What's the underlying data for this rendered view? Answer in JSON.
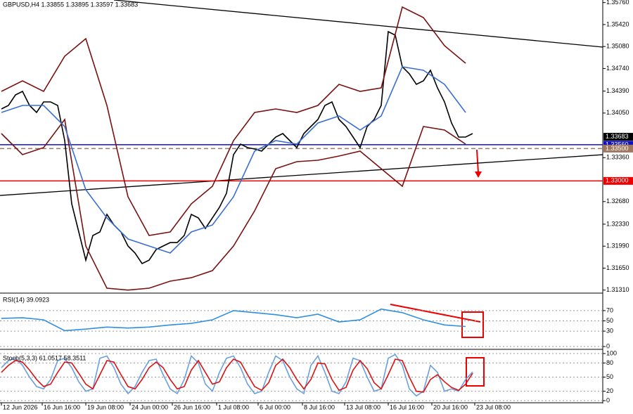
{
  "chart_data": [
    {
      "type": "line",
      "title": "GBPUSD,H4  1.33855 1.33895 1.33597 1.33683",
      "x": [
        0,
        1,
        2,
        3,
        4,
        5,
        6,
        7,
        8,
        9,
        10,
        11,
        12,
        13,
        14,
        15,
        16,
        17,
        18,
        19,
        20,
        21,
        22,
        23,
        24,
        25,
        26,
        27,
        28,
        29,
        30,
        31,
        32,
        33,
        34,
        35,
        36,
        37,
        38,
        39,
        40,
        41,
        42,
        43,
        44,
        45,
        46,
        47,
        48,
        49,
        50,
        51,
        52,
        53,
        54,
        55,
        56,
        57,
        58,
        59,
        60,
        61,
        62,
        63,
        64,
        65,
        66,
        67
      ],
      "xlim": [
        -0.2,
        85.5
      ],
      "ylim": [
        1.31285,
        1.358
      ],
      "yticks": [
        {
          "value": 1.3131,
          "label": "1.31310"
        },
        {
          "value": 1.3165,
          "label": "1.31650"
        },
        {
          "value": 1.3199,
          "label": "1.31990"
        },
        {
          "value": 1.3233,
          "label": "1.32330"
        },
        {
          "value": 1.3268,
          "label": "1.32680"
        },
        {
          "value": 1.3336,
          "label": "1.33360"
        },
        {
          "value": 1.3405,
          "label": "1.34050"
        },
        {
          "value": 1.3439,
          "label": "1.34390"
        },
        {
          "value": 1.3474,
          "label": "1.34740"
        },
        {
          "value": 1.3508,
          "label": "1.35080"
        },
        {
          "value": 1.3542,
          "label": "1.35420"
        },
        {
          "value": 1.3576,
          "label": "1.35760"
        }
      ],
      "series": [
        {
          "color": "#000000",
          "values": [
            1.34114,
            1.34168,
            1.34331,
            1.34386,
            1.34168,
            1.34059,
            1.34222,
            1.34222,
            1.34168,
            1.33624,
            1.32645,
            1.3221,
            1.31774,
            1.32155,
            1.3221,
            1.32482,
            1.32318,
            1.3221,
            1.31992,
            1.31883,
            1.3172,
            1.31774,
            1.31938,
            1.31992,
            1.32046,
            1.32046,
            1.32155,
            1.32482,
            1.32427,
            1.32264,
            1.32427,
            1.3259,
            1.32808,
            1.33406,
            1.3357,
            1.33515,
            1.33493,
            1.33461,
            1.3357,
            1.33678,
            1.33733,
            1.33624,
            1.33515,
            1.33733,
            1.33842,
            1.3395,
            1.34168,
            1.34222,
            1.3395,
            1.33842,
            1.33678,
            1.33515,
            1.33842,
            1.3395,
            1.34168,
            1.3531,
            1.35256,
            1.34766,
            1.34658,
            1.34494,
            1.34549,
            1.34712,
            1.3444,
            1.34222,
            1.33896,
            1.33678,
            1.33678,
            1.33733
          ]
        },
        {
          "color": "#7a1010",
          "x": [
            0,
            3,
            6,
            9,
            12,
            15,
            18,
            21,
            24,
            27,
            30,
            33,
            36,
            39,
            42,
            45,
            48,
            51,
            54,
            57,
            60,
            63,
            66
          ],
          "values": [
            1.34386,
            1.34549,
            1.34386,
            1.3493,
            1.35202,
            1.34168,
            1.32754,
            1.32155,
            1.3221,
            1.32645,
            1.32917,
            1.33624,
            1.34059,
            1.34114,
            1.34059,
            1.34168,
            1.34494,
            1.34386,
            1.3444,
            1.35691,
            1.35528,
            1.35093,
            1.34821
          ]
        },
        {
          "color": "#7a1010",
          "x": [
            0,
            3,
            6,
            9,
            12,
            15,
            18,
            21,
            24,
            27,
            30,
            33,
            36,
            39,
            42,
            45,
            48,
            51,
            54,
            57,
            60,
            63,
            66
          ],
          "values": [
            1.33733,
            1.33406,
            1.33515,
            1.3395,
            1.31992,
            1.31339,
            1.3131,
            1.31339,
            1.31448,
            1.31502,
            1.31611,
            1.31992,
            1.32536,
            1.33189,
            1.33298,
            1.33319,
            1.33385,
            1.33461,
            1.33189,
            1.32917,
            1.33842,
            1.33787,
            1.3357
          ]
        },
        {
          "color": "#3a6fd0",
          "x": [
            0,
            3,
            6,
            9,
            12,
            15,
            18,
            21,
            24,
            27,
            30,
            33,
            36,
            39,
            42,
            45,
            48,
            51,
            54,
            57,
            60,
            63,
            66
          ],
          "values": [
            1.34059,
            1.34168,
            1.34168,
            1.33842,
            1.32862,
            1.32427,
            1.32101,
            1.31992,
            1.31883,
            1.3221,
            1.32318,
            1.32754,
            1.33461,
            1.33624,
            1.3357,
            1.33896,
            1.34005,
            1.33787,
            1.34005,
            1.34766,
            1.34712,
            1.34494,
            1.34059
          ]
        }
      ],
      "trendlines": [
        {
          "color": "#000000",
          "x": [
            16,
            85.5
          ],
          "y": [
            1.358,
            1.35071
          ]
        },
        {
          "color": "#000000",
          "x": [
            -0.2,
            85.5
          ],
          "y": [
            1.32775,
            1.33406
          ]
        }
      ],
      "levels": [
        {
          "value": 1.3356,
          "label": "1.33560",
          "color": "#1010c0",
          "dash": false
        },
        {
          "value": 1.335,
          "label": "1.33500",
          "color": "#a07860",
          "dash": true
        },
        {
          "value": 1.33,
          "label": "1.33000",
          "color": "#ee0000",
          "dash": false
        }
      ],
      "current": {
        "value": 1.33683,
        "label": "1.33683",
        "color": "#000000"
      }
    },
    {
      "type": "line",
      "title": "RSI(14) 39.0923",
      "x": [
        0,
        3,
        6,
        9,
        12,
        15,
        18,
        21,
        24,
        27,
        30,
        33,
        36,
        39,
        42,
        45,
        48,
        51,
        54,
        57,
        60,
        63,
        66
      ],
      "xlim": [
        -0.2,
        85.5
      ],
      "ylim": [
        0,
        100
      ],
      "yticks": [
        0,
        30,
        50,
        70
      ],
      "grid": true,
      "series": [
        {
          "color": "#2f8fe0",
          "values": [
            55,
            56,
            52,
            31,
            34,
            38,
            36,
            38,
            42,
            45,
            52,
            70,
            66,
            62,
            56,
            63,
            48,
            52,
            73,
            66,
            52,
            42,
            39
          ]
        }
      ]
    },
    {
      "type": "line",
      "title": "Stoch(5,3,3) 61.0517 58.3511",
      "x": [
        0,
        1,
        2,
        3,
        4,
        5,
        6,
        7,
        8,
        9,
        10,
        11,
        12,
        13,
        14,
        15,
        16,
        17,
        18,
        19,
        20,
        21,
        22,
        23,
        24,
        25,
        26,
        27,
        28,
        29,
        30,
        31,
        32,
        33,
        34,
        35,
        36,
        37,
        38,
        39,
        40,
        41,
        42,
        43,
        44,
        45,
        46,
        47,
        48,
        49,
        50,
        51,
        52,
        53,
        54,
        55,
        56,
        57,
        58,
        59,
        60,
        61,
        62,
        63,
        64,
        65,
        66,
        67
      ],
      "xlim": [
        -0.2,
        85.5
      ],
      "ylim": [
        0,
        100
      ],
      "yticks": [
        0,
        20,
        50,
        80,
        100
      ],
      "grid": true,
      "series": [
        {
          "color": "#6a9fe0",
          "values": [
            70,
            85,
            90,
            75,
            50,
            30,
            25,
            45,
            85,
            90,
            70,
            40,
            20,
            25,
            90,
            95,
            70,
            35,
            15,
            30,
            60,
            85,
            88,
            55,
            25,
            15,
            45,
            95,
            80,
            35,
            20,
            60,
            90,
            95,
            70,
            35,
            15,
            20,
            60,
            95,
            85,
            50,
            25,
            15,
            75,
            95,
            60,
            20,
            15,
            40,
            90,
            85,
            50,
            20,
            25,
            90,
            98,
            75,
            25,
            10,
            20,
            75,
            60,
            20,
            25,
            20,
            45,
            61
          ]
        },
        {
          "color": "#dd1111",
          "values": [
            60,
            75,
            85,
            82,
            65,
            45,
            30,
            35,
            60,
            82,
            80,
            58,
            35,
            25,
            55,
            85,
            82,
            55,
            30,
            25,
            45,
            70,
            82,
            70,
            45,
            25,
            30,
            65,
            85,
            60,
            35,
            40,
            70,
            88,
            82,
            55,
            30,
            22,
            38,
            75,
            88,
            70,
            45,
            25,
            45,
            80,
            78,
            45,
            22,
            28,
            65,
            85,
            68,
            38,
            25,
            55,
            88,
            85,
            50,
            20,
            18,
            45,
            55,
            40,
            28,
            22,
            35,
            58
          ]
        }
      ],
      "xticks": [
        {
          "value": 0,
          "label": "12 Jun 2026"
        },
        {
          "value": 5.8,
          "label": "16 Jun 16:00"
        },
        {
          "value": 12,
          "label": "19 Jun 08:00"
        },
        {
          "value": 18.3,
          "label": "24 Jun 00:00"
        },
        {
          "value": 24.3,
          "label": "26 Jun 16:00"
        },
        {
          "value": 30.6,
          "label": "1 Jul 08:00"
        },
        {
          "value": 36.5,
          "label": "6 Jul 00:00"
        },
        {
          "value": 42.8,
          "label": "8 Jul 16:00"
        },
        {
          "value": 48.8,
          "label": "13 Jul 08:00"
        },
        {
          "value": 55,
          "label": "16 Jul 16:00"
        },
        {
          "value": 61.2,
          "label": "20 Jul 16:00"
        },
        {
          "value": 67.3,
          "label": "23 Jul 08:00"
        }
      ]
    }
  ]
}
